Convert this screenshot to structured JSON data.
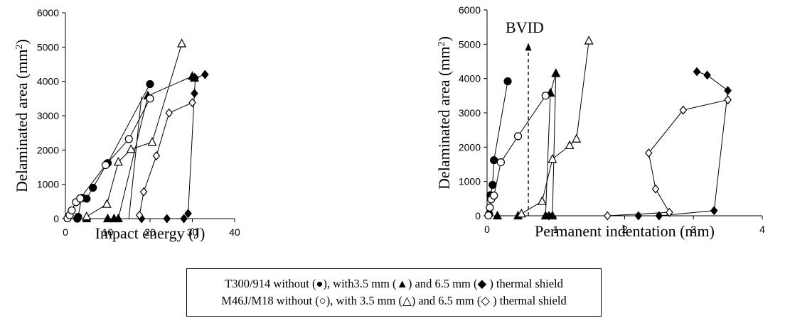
{
  "chart_data": [
    {
      "type": "line",
      "xlabel": "Impact energy (J)",
      "ylabel": "Delaminated area (mm",
      "ylabel_sup": "2",
      "ylabel_end": ")",
      "xlim": [
        0,
        40
      ],
      "ylim": [
        0,
        6000
      ],
      "x_ticks": [
        "0",
        "10",
        "20",
        "30",
        "40"
      ],
      "y_ticks": [
        "0",
        "1000",
        "2000",
        "3000",
        "4000",
        "5000",
        "6000"
      ],
      "series": [
        {
          "marker": "circle",
          "filled": true,
          "x": [
            2.8,
            3.0,
            3.8,
            4.0,
            5.0,
            6.5,
            9.8,
            10.0,
            20.0
          ],
          "y": [
            0,
            50,
            600,
            600,
            580,
            900,
            1600,
            1620,
            3920
          ]
        },
        {
          "marker": "triangle",
          "filled": true,
          "x": [
            5.0,
            10.0,
            11.5,
            12.5,
            19.5,
            30.0,
            30.5
          ],
          "y": [
            0,
            0,
            0,
            0,
            3580,
            4150,
            4100
          ]
        },
        {
          "marker": "diamond",
          "filled": true,
          "x": [
            18.0,
            24.0,
            28.0,
            29.0,
            30.5,
            30.7,
            33.0
          ],
          "y": [
            0,
            0,
            0,
            150,
            3650,
            4100,
            4200
          ]
        },
        {
          "marker": "circle",
          "filled": false,
          "x": [
            0.5,
            1.0,
            1.5,
            2.5,
            3.5,
            9.5,
            15.0,
            20.0
          ],
          "y": [
            10,
            100,
            240,
            480,
            590,
            1560,
            2320,
            3500
          ]
        },
        {
          "marker": "triangle",
          "filled": false,
          "x": [
            5.0,
            9.8,
            12.5,
            15.5,
            20.5,
            27.5
          ],
          "y": [
            60,
            420,
            1650,
            2020,
            2230,
            5100
          ]
        },
        {
          "marker": "diamond",
          "filled": false,
          "x": [
            17.5,
            18.5,
            21.5,
            24.5,
            30.0
          ],
          "y": [
            100,
            780,
            1830,
            3080,
            3380
          ]
        },
        {
          "marker": "none",
          "filled": false,
          "x": [
            15.0,
            18.0
          ],
          "y": [
            0,
            3560
          ]
        }
      ]
    },
    {
      "type": "line",
      "xlabel": "Permanent indentation (mm)",
      "ylabel": "Delaminated area (mm",
      "ylabel_sup": "2",
      "ylabel_end": ")",
      "xlim": [
        0,
        4
      ],
      "ylim": [
        0,
        6000
      ],
      "x_ticks": [
        "0",
        "1",
        "2",
        "3",
        "4"
      ],
      "y_ticks": [
        "0",
        "1000",
        "2000",
        "3000",
        "4000",
        "5000",
        "6000"
      ],
      "annotation": {
        "text": "BVID",
        "x": 0.6,
        "y_from": 0,
        "y_to": 5000
      },
      "series": [
        {
          "marker": "circle",
          "filled": true,
          "x": [
            0.03,
            0.05,
            0.08,
            0.1,
            0.3
          ],
          "y": [
            50,
            600,
            900,
            1620,
            3920
          ]
        },
        {
          "marker": "triangle",
          "filled": true,
          "x": [
            0.15,
            0.45,
            0.85,
            0.92,
            1.0,
            0.95
          ],
          "y": [
            0,
            0,
            0,
            3580,
            4150,
            0
          ]
        },
        {
          "marker": "diamond",
          "filled": true,
          "x": [
            0.9,
            2.2,
            2.5,
            3.3,
            3.5,
            3.2,
            3.05
          ],
          "y": [
            0,
            0,
            0,
            150,
            3650,
            4100,
            4200
          ]
        },
        {
          "marker": "circle",
          "filled": false,
          "x": [
            0.02,
            0.04,
            0.06,
            0.1,
            0.2,
            0.45,
            0.85
          ],
          "y": [
            10,
            240,
            480,
            590,
            1560,
            2320,
            3500
          ]
        },
        {
          "marker": "triangle",
          "filled": false,
          "x": [
            0.5,
            0.8,
            0.95,
            1.2,
            1.3,
            1.48
          ],
          "y": [
            60,
            420,
            1650,
            2050,
            2240,
            5100
          ]
        },
        {
          "marker": "diamond",
          "filled": false,
          "x": [
            1.75,
            2.65,
            2.45,
            2.35,
            2.85,
            3.5
          ],
          "y": [
            0,
            100,
            780,
            1830,
            3080,
            3380
          ]
        }
      ]
    }
  ],
  "legend": {
    "line1": {
      "pre": "T300/914 without (",
      "m1": "●",
      "mid1": "), with3.5 mm (",
      "m2": "▲",
      "mid2": ") and 6.5 mm (",
      "m3": "◆",
      "post": " ) thermal shield"
    },
    "line2": {
      "pre": "M46J/M18 without (",
      "m1": "○",
      "mid1": "), with 3.5 mm (",
      "m2": "△",
      "mid2": ") and 6.5 mm (",
      "m3": "◇",
      "post": " ) thermal shield"
    }
  }
}
